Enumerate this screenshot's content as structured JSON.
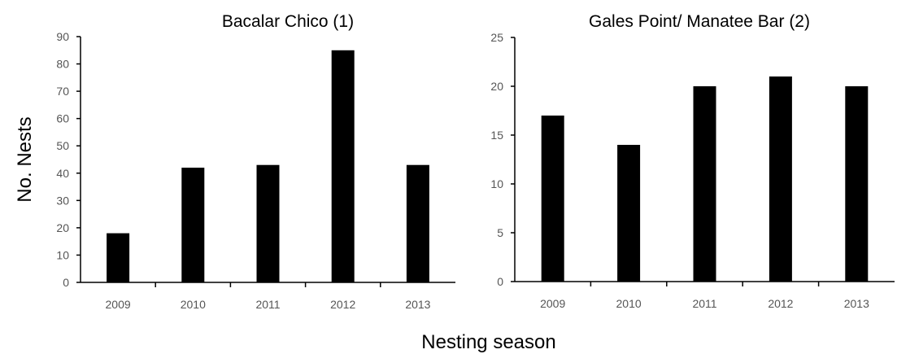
{
  "figure": {
    "ylabel": "No. Nests",
    "xlabel": "Nesting season"
  },
  "chart_data": [
    {
      "type": "bar",
      "title": "Bacalar Chico (1)",
      "categories": [
        "2009",
        "2010",
        "2011",
        "2012",
        "2013"
      ],
      "values": [
        18,
        42,
        43,
        85,
        43
      ],
      "ylim": [
        0,
        90
      ],
      "yticks": [
        0,
        10,
        20,
        30,
        40,
        50,
        60,
        70,
        80,
        90
      ],
      "grid": false,
      "bar_color": "#000000"
    },
    {
      "type": "bar",
      "title": "Gales Point/ Manatee Bar (2)",
      "categories": [
        "2009",
        "2010",
        "2011",
        "2012",
        "2013"
      ],
      "values": [
        17,
        14,
        20,
        21,
        20
      ],
      "ylim": [
        0,
        25
      ],
      "yticks": [
        0,
        5,
        10,
        15,
        20,
        25
      ],
      "grid": false,
      "bar_color": "#000000"
    }
  ]
}
